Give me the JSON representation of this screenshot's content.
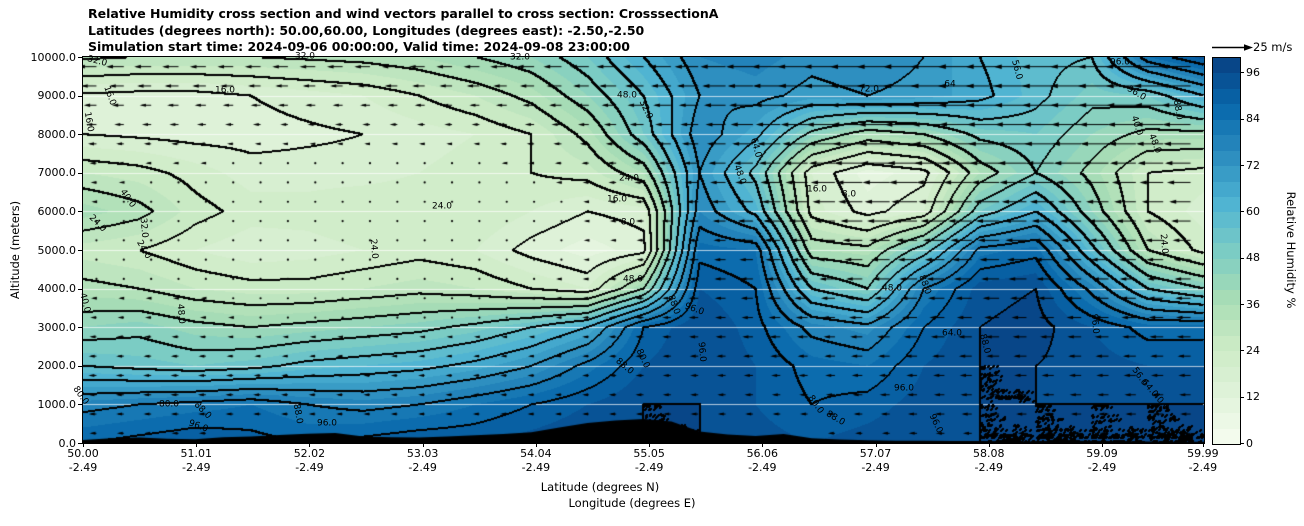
{
  "title": {
    "line1": "Relative Humidity cross section and wind vectors parallel to cross section: CrosssectionA",
    "line2": "Latitudes (degrees north): 50.00,60.00, Longitudes (degrees east): -2.50,-2.50",
    "line3": "Simulation start time: 2024-09-06 00:00:00, Valid time: 2024-09-08 23:00:00"
  },
  "axes": {
    "y_label": "Altitude (meters)",
    "y_ticks": [
      "0.0",
      "1000.0",
      "2000.0",
      "3000.0",
      "4000.0",
      "5000.0",
      "6000.0",
      "7000.0",
      "8000.0",
      "9000.0",
      "10000.0"
    ],
    "x_label_line1": "Latitude (degrees N)",
    "x_label_line2": "Longitude (degrees E)",
    "x_ticks": [
      {
        "lat": "50.00",
        "lon": "-2.49"
      },
      {
        "lat": "51.01",
        "lon": "-2.49"
      },
      {
        "lat": "52.02",
        "lon": "-2.49"
      },
      {
        "lat": "53.03",
        "lon": "-2.49"
      },
      {
        "lat": "54.04",
        "lon": "-2.49"
      },
      {
        "lat": "55.05",
        "lon": "-2.49"
      },
      {
        "lat": "56.06",
        "lon": "-2.49"
      },
      {
        "lat": "57.07",
        "lon": "-2.49"
      },
      {
        "lat": "58.08",
        "lon": "-2.49"
      },
      {
        "lat": "59.09",
        "lon": "-2.49"
      },
      {
        "lat": "59.99",
        "lon": "-2.49"
      }
    ]
  },
  "colorbar": {
    "label": "Relative Humidity %",
    "ticks": [
      0,
      12,
      24,
      36,
      48,
      60,
      72,
      84,
      96
    ],
    "vmin": 0,
    "vmax": 100,
    "step": 4,
    "colormap": [
      "#f7fcf0",
      "#e0f3db",
      "#ccebc5",
      "#a8ddb5",
      "#7bccc4",
      "#4eb3d3",
      "#2b8cbe",
      "#0868ac",
      "#084081"
    ]
  },
  "wind_legend": {
    "label": "25 m/s",
    "speed": 25
  },
  "chart_data": {
    "type": "heatmap",
    "title": "Relative Humidity cross section and wind vectors parallel to cross section: CrosssectionA",
    "x_lat": [
      50,
      50.5,
      51,
      51.5,
      52,
      52.5,
      53,
      53.5,
      54,
      54.5,
      55,
      55.5,
      56,
      56.5,
      57,
      57.5,
      58,
      58.5,
      59,
      59.5,
      60
    ],
    "y_alt": [
      0,
      1000,
      2000,
      3000,
      4000,
      5000,
      6000,
      7000,
      8000,
      9000,
      10000
    ],
    "rh_percent": [
      [
        88,
        90,
        92,
        90,
        88,
        90,
        92,
        92,
        94,
        96,
        96,
        96,
        94,
        92,
        94,
        96,
        96,
        96,
        96,
        96,
        96
      ],
      [
        78,
        80,
        82,
        84,
        80,
        78,
        80,
        84,
        88,
        92,
        96,
        96,
        92,
        88,
        90,
        94,
        96,
        96,
        96,
        96,
        96
      ],
      [
        56,
        54,
        52,
        54,
        58,
        60,
        62,
        66,
        72,
        82,
        92,
        96,
        92,
        86,
        84,
        92,
        96,
        96,
        94,
        92,
        92
      ],
      [
        44,
        46,
        42,
        40,
        42,
        44,
        46,
        50,
        56,
        64,
        88,
        96,
        90,
        78,
        74,
        88,
        96,
        98,
        92,
        86,
        86
      ],
      [
        34,
        32,
        28,
        26,
        26,
        28,
        30,
        28,
        24,
        20,
        40,
        92,
        88,
        56,
        48,
        80,
        94,
        96,
        78,
        56,
        48
      ],
      [
        26,
        24,
        20,
        17,
        18,
        20,
        22,
        20,
        14,
        10,
        14,
        86,
        84,
        36,
        34,
        52,
        82,
        86,
        58,
        32,
        22
      ],
      [
        38,
        34,
        26,
        22,
        22,
        24,
        24,
        24,
        20,
        16,
        18,
        76,
        62,
        22,
        14,
        20,
        52,
        64,
        44,
        24,
        18
      ],
      [
        28,
        26,
        22,
        18,
        18,
        18,
        20,
        22,
        24,
        26,
        36,
        72,
        54,
        20,
        10,
        14,
        36,
        48,
        38,
        24,
        22
      ],
      [
        16,
        15,
        14,
        14,
        15,
        16,
        18,
        20,
        24,
        34,
        52,
        76,
        66,
        46,
        36,
        40,
        50,
        52,
        44,
        38,
        38
      ],
      [
        15,
        14,
        14,
        16,
        18,
        20,
        24,
        28,
        34,
        44,
        56,
        72,
        74,
        70,
        72,
        70,
        66,
        58,
        50,
        52,
        64
      ],
      [
        33,
        32,
        32,
        32,
        33,
        34,
        36,
        40,
        44,
        52,
        64,
        76,
        78,
        74,
        76,
        72,
        64,
        58,
        56,
        84,
        94
      ]
    ],
    "wind_u_ms": [
      [
        -3,
        -3,
        -3,
        -3,
        -3,
        -3,
        -3,
        -3,
        -3,
        -3,
        -3,
        -3,
        -3,
        -3,
        -3,
        -4,
        -4,
        -4,
        -4,
        -4,
        -4
      ],
      [
        -4,
        -4,
        -4,
        -4,
        -3,
        -3,
        -3,
        -3,
        -3,
        -3,
        -4,
        -4,
        -4,
        -4,
        -5,
        -5,
        -6,
        -6,
        -6,
        -6,
        -6
      ],
      [
        -4,
        -4,
        -4,
        -3,
        -3,
        -3,
        -3,
        -3,
        -3,
        -3,
        -4,
        -4,
        -5,
        -5,
        -6,
        -6,
        -7,
        -7,
        -7,
        -7,
        -7
      ],
      [
        -3,
        -3,
        -3,
        -2,
        -2,
        -2,
        -2,
        -2,
        -2,
        -3,
        -4,
        -5,
        -6,
        -6,
        -7,
        -8,
        -8,
        -8,
        -8,
        -8,
        -8
      ],
      [
        -2,
        -2,
        -2,
        -1,
        -1,
        -1,
        -1,
        -1,
        -2,
        -3,
        -4,
        -5,
        -7,
        -8,
        -9,
        -10,
        -10,
        -10,
        -9,
        -9,
        -9
      ],
      [
        -2,
        -1,
        -1,
        -1,
        0,
        0,
        0,
        -1,
        -1,
        -2,
        -3,
        -5,
        -8,
        -10,
        -11,
        -12,
        -12,
        -12,
        -11,
        -10,
        -10
      ],
      [
        -2,
        -1,
        -1,
        0,
        0,
        0,
        0,
        -1,
        -1,
        -2,
        -4,
        -6,
        -9,
        -12,
        -14,
        -15,
        -15,
        -14,
        -13,
        -12,
        -12
      ],
      [
        -3,
        -2,
        -2,
        -1,
        -1,
        -1,
        -1,
        -1,
        -2,
        -3,
        -5,
        -8,
        -11,
        -14,
        -17,
        -18,
        -18,
        -17,
        -16,
        -15,
        -15
      ],
      [
        -5,
        -4,
        -4,
        -3,
        -3,
        -3,
        -3,
        -3,
        -4,
        -5,
        -7,
        -10,
        -13,
        -16,
        -19,
        -20,
        -20,
        -19,
        -18,
        -17,
        -17
      ],
      [
        -8,
        -7,
        -7,
        -6,
        -6,
        -6,
        -6,
        -6,
        -7,
        -8,
        -10,
        -12,
        -15,
        -18,
        -20,
        -21,
        -21,
        -20,
        -19,
        -18,
        -18
      ],
      [
        -12,
        -11,
        -10,
        -10,
        -10,
        -10,
        -10,
        -10,
        -11,
        -12,
        -13,
        -15,
        -17,
        -19,
        -20,
        -21,
        -21,
        -20,
        -19,
        -19,
        -19
      ]
    ],
    "terrain_m": [
      80,
      120,
      140,
      110,
      100,
      150,
      170,
      210,
      240,
      260,
      170,
      150,
      140,
      170,
      200,
      230,
      280,
      400,
      520,
      580,
      620,
      560,
      300,
      220,
      180,
      230,
      120,
      90,
      70,
      60,
      60,
      50,
      50,
      45,
      40,
      50,
      60,
      45,
      40,
      35,
      30
    ],
    "contour_levels": [
      8,
      16,
      24,
      32,
      40,
      48,
      56,
      64,
      72,
      80,
      88,
      96
    ],
    "contour_labels": [
      {
        "t": "32.0",
        "x": 97,
        "y": 62,
        "r": 15
      },
      {
        "t": "32.0",
        "x": 305,
        "y": 57,
        "r": 0
      },
      {
        "t": "32.0",
        "x": 520,
        "y": 58,
        "r": 0
      },
      {
        "t": "16.0",
        "x": 109,
        "y": 96,
        "r": 70
      },
      {
        "t": "16.0",
        "x": 225,
        "y": 91,
        "r": 0
      },
      {
        "t": "16.0",
        "x": 88,
        "y": 122,
        "r": 80
      },
      {
        "t": "48.0",
        "x": 627,
        "y": 96,
        "r": 0
      },
      {
        "t": "32.0",
        "x": 645,
        "y": 110,
        "r": 65
      },
      {
        "t": "72.0",
        "x": 869,
        "y": 90,
        "r": 0
      },
      {
        "t": "64",
        "x": 950,
        "y": 85,
        "r": 0
      },
      {
        "t": "56.0",
        "x": 1016,
        "y": 70,
        "r": 75
      },
      {
        "t": "96.0",
        "x": 1120,
        "y": 63,
        "r": 0
      },
      {
        "t": "96.0",
        "x": 1136,
        "y": 94,
        "r": 30
      },
      {
        "t": "88.0",
        "x": 1177,
        "y": 110,
        "r": 80
      },
      {
        "t": "40.0",
        "x": 1136,
        "y": 126,
        "r": 72
      },
      {
        "t": "48.0",
        "x": 1154,
        "y": 144,
        "r": 68
      },
      {
        "t": "24.0",
        "x": 1163,
        "y": 244,
        "r": 85
      },
      {
        "t": "40.0",
        "x": 127,
        "y": 199,
        "r": 55
      },
      {
        "t": "24.0",
        "x": 97,
        "y": 224,
        "r": 45
      },
      {
        "t": "32.0",
        "x": 143,
        "y": 228,
        "r": 85
      },
      {
        "t": "24.0",
        "x": 143,
        "y": 250,
        "r": 60
      },
      {
        "t": "48.0",
        "x": 180,
        "y": 314,
        "r": 85
      },
      {
        "t": "40.0",
        "x": 84,
        "y": 303,
        "r": 75
      },
      {
        "t": "80.0",
        "x": 80,
        "y": 396,
        "r": 55
      },
      {
        "t": "80.0",
        "x": 169,
        "y": 405,
        "r": 0
      },
      {
        "t": "88.0",
        "x": 202,
        "y": 411,
        "r": 45
      },
      {
        "t": "96.0",
        "x": 198,
        "y": 427,
        "r": 20
      },
      {
        "t": "88.0",
        "x": 297,
        "y": 414,
        "r": 80
      },
      {
        "t": "96.0",
        "x": 327,
        "y": 424,
        "r": 0
      },
      {
        "t": "24.0",
        "x": 442,
        "y": 207,
        "r": 0
      },
      {
        "t": "24.0",
        "x": 373,
        "y": 249,
        "r": 85
      },
      {
        "t": "24.0",
        "x": 629,
        "y": 179,
        "r": 0
      },
      {
        "t": "16.0",
        "x": 617,
        "y": 200,
        "r": 0
      },
      {
        "t": "8.0",
        "x": 628,
        "y": 223,
        "r": 0
      },
      {
        "t": "48.0",
        "x": 633,
        "y": 280,
        "r": 0
      },
      {
        "t": "88.0",
        "x": 673,
        "y": 305,
        "r": 70
      },
      {
        "t": "96.0",
        "x": 694,
        "y": 310,
        "r": 20
      },
      {
        "t": "96.0",
        "x": 701,
        "y": 352,
        "r": 85
      },
      {
        "t": "80.0",
        "x": 642,
        "y": 359,
        "r": 65
      },
      {
        "t": "88.0",
        "x": 624,
        "y": 367,
        "r": 40
      },
      {
        "t": "48.0",
        "x": 739,
        "y": 175,
        "r": 70
      },
      {
        "t": "64.0",
        "x": 755,
        "y": 148,
        "r": 75
      },
      {
        "t": "16.0",
        "x": 817,
        "y": 190,
        "r": 0
      },
      {
        "t": "8.0",
        "x": 849,
        "y": 195,
        "r": 0
      },
      {
        "t": "48.0",
        "x": 892,
        "y": 289,
        "r": 0
      },
      {
        "t": "88.0",
        "x": 924,
        "y": 285,
        "r": 70
      },
      {
        "t": "64.0",
        "x": 952,
        "y": 334,
        "r": 0
      },
      {
        "t": "88.0",
        "x": 984,
        "y": 344,
        "r": 75
      },
      {
        "t": "96.0",
        "x": 1094,
        "y": 324,
        "r": 85
      },
      {
        "t": "96.0",
        "x": 904,
        "y": 389,
        "r": 0
      },
      {
        "t": "80.0",
        "x": 815,
        "y": 405,
        "r": 55
      },
      {
        "t": "88.0",
        "x": 835,
        "y": 419,
        "r": 30
      },
      {
        "t": "96.0",
        "x": 935,
        "y": 424,
        "r": 65
      },
      {
        "t": "56.0",
        "x": 1139,
        "y": 377,
        "r": 55
      },
      {
        "t": "64.0",
        "x": 1149,
        "y": 389,
        "r": 50
      },
      {
        "t": "40.0",
        "x": 1160,
        "y": 402,
        "r": 50
      }
    ]
  }
}
